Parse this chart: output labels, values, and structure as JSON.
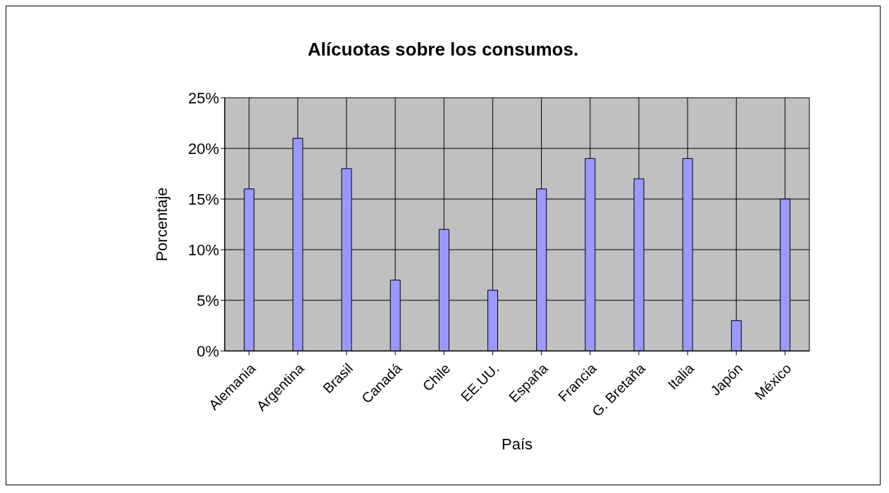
{
  "chart_data": {
    "type": "bar",
    "title": "Alícuotas sobre los consumos.",
    "xlabel": "País",
    "ylabel": "Porcentaje",
    "categories": [
      "Alemania",
      "Argentina",
      "Brasil",
      "Canadá",
      "Chile",
      "EE.UU.",
      "España",
      "Francia",
      "G. Bretaña",
      "Italia",
      "Japón",
      "México"
    ],
    "values": [
      16,
      21,
      18,
      7,
      12,
      6,
      16,
      19,
      17,
      19,
      3,
      15
    ],
    "color": "#9999ff",
    "ylim": [
      0,
      25
    ],
    "yticks": [
      {
        "value": 0,
        "label": "0%"
      },
      {
        "value": 5,
        "label": "5%"
      },
      {
        "value": 10,
        "label": "10%"
      },
      {
        "value": 15,
        "label": "15%"
      },
      {
        "value": 20,
        "label": "20%"
      },
      {
        "value": 25,
        "label": "25%"
      }
    ],
    "grid": true,
    "legend": false
  }
}
